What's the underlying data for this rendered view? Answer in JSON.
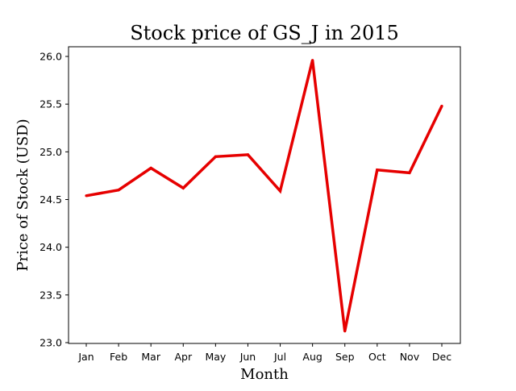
{
  "chart_data": {
    "type": "line",
    "title": "Stock price of GS_J in 2015",
    "xlabel": "Month",
    "ylabel": "Price of Stock (USD)",
    "categories": [
      "Jan",
      "Feb",
      "Mar",
      "Apr",
      "May",
      "Jun",
      "Jul",
      "Aug",
      "Sep",
      "Oct",
      "Nov",
      "Dec"
    ],
    "series": [
      {
        "color": "#e60000",
        "values": [
          24.54,
          24.6,
          24.83,
          24.62,
          24.95,
          24.97,
          24.59,
          25.96,
          23.12,
          24.81,
          24.78,
          25.48
        ]
      }
    ],
    "ylim": [
      23.0,
      26.0
    ],
    "yticks": [
      "23.0",
      "23.5",
      "24.0",
      "24.5",
      "25.0",
      "25.5",
      "26.0"
    ],
    "grid": false,
    "legend": "none"
  }
}
